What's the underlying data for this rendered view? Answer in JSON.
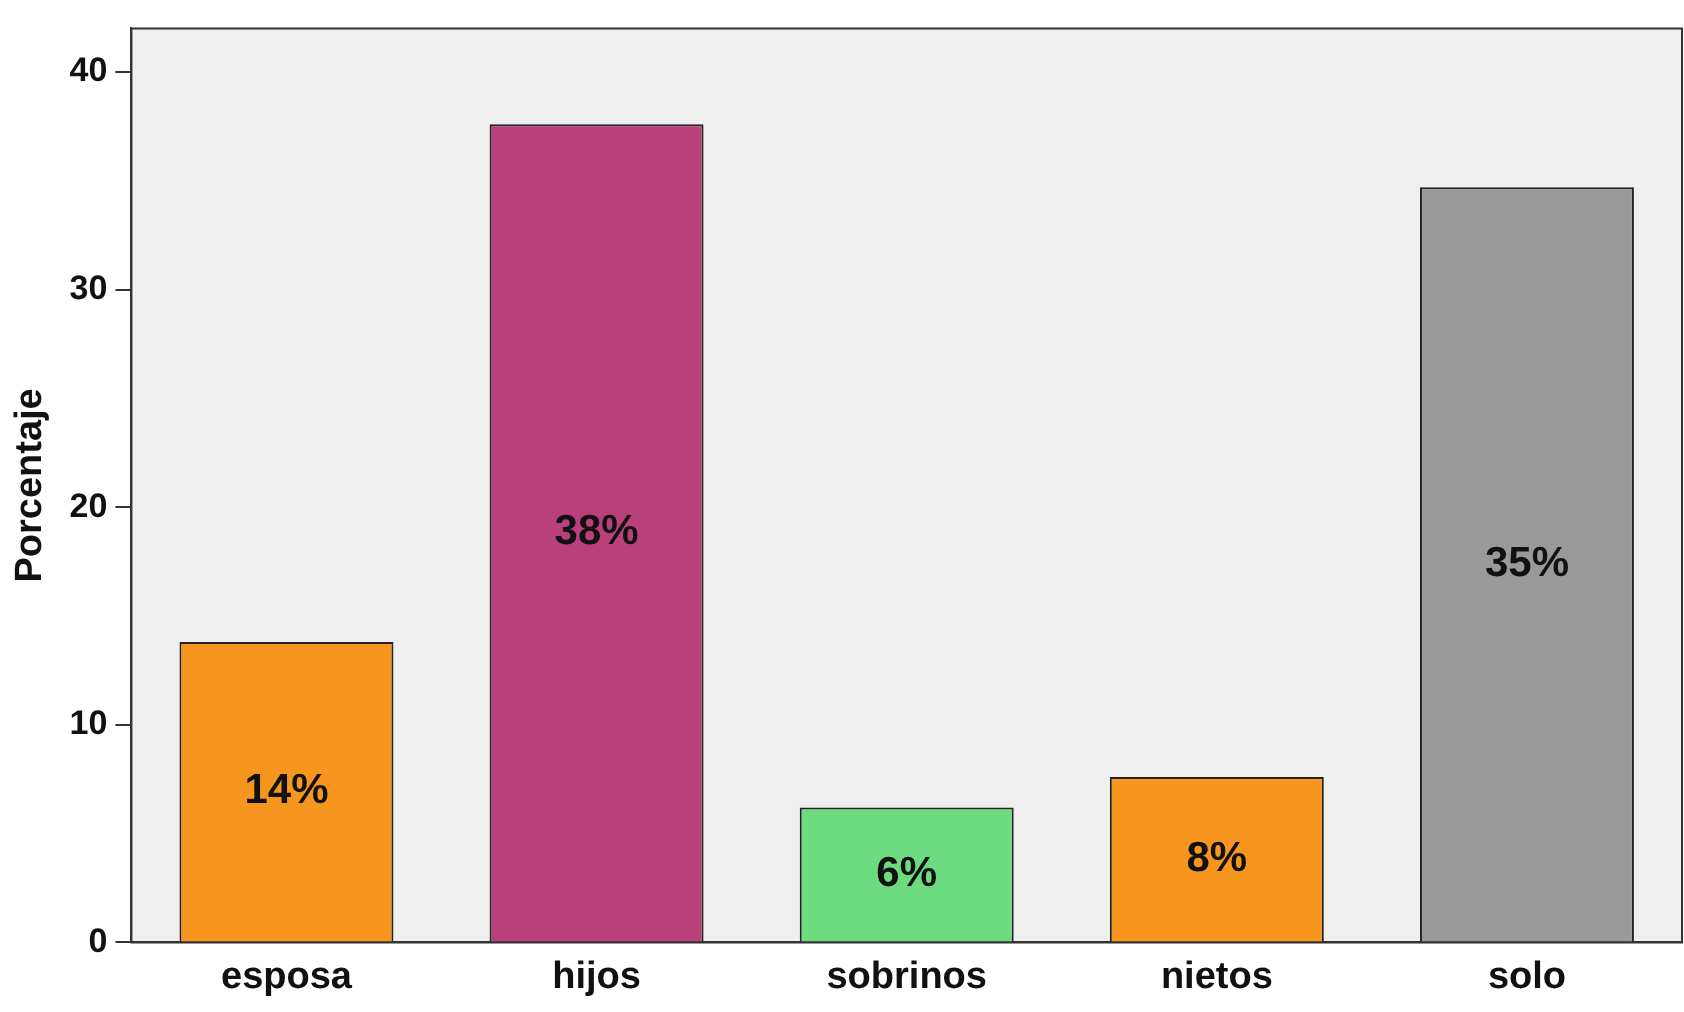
{
  "chart_data": {
    "type": "bar",
    "ylabel": "Porcentaje",
    "categories": [
      "esposa",
      "hijos",
      "sobrinos",
      "nietos",
      "solo"
    ],
    "values": [
      13.8,
      37.6,
      6.2,
      7.6,
      34.7
    ],
    "colors": [
      "#f7961e",
      "#b9407b",
      "#6ddb7f",
      "#f7961e",
      "#999999"
    ],
    "value_labels": [
      "14%",
      "38%",
      "6%",
      "8%",
      "35%"
    ],
    "ylim": [
      0,
      42
    ],
    "yticks": [
      0,
      10,
      20,
      30,
      40
    ],
    "grid": false,
    "legend": false
  }
}
